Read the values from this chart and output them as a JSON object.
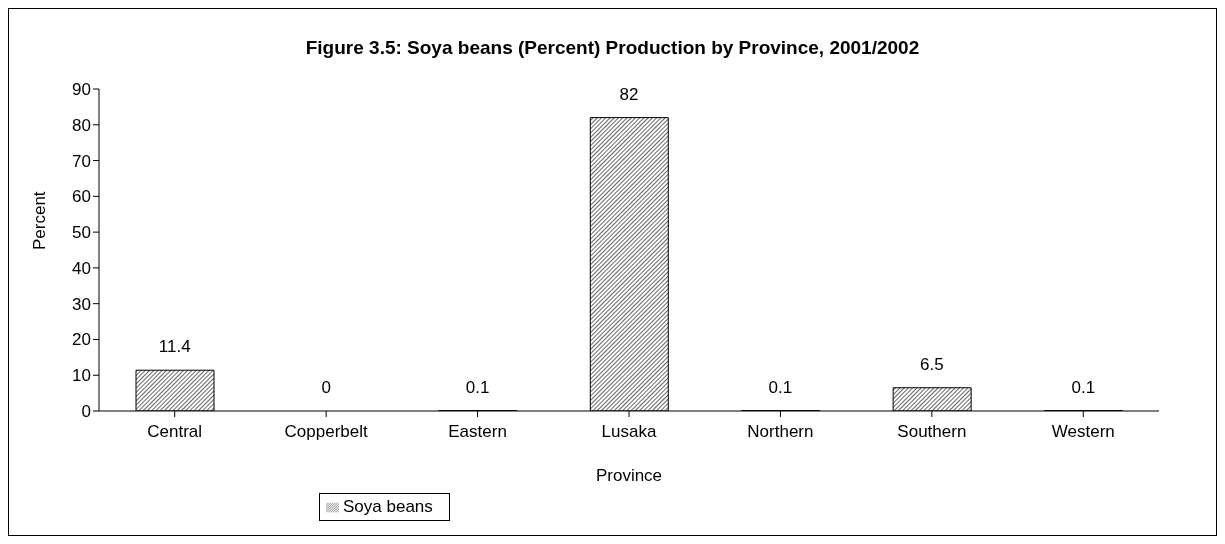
{
  "chart_data": {
    "type": "bar",
    "title": "Figure 3.5: Soya beans (Percent) Production by Province, 2001/2002",
    "xlabel": "Province",
    "ylabel": "Percent",
    "categories": [
      "Central",
      "Copperbelt",
      "Eastern",
      "Lusaka",
      "Northern",
      "Southern",
      "Western"
    ],
    "series": [
      {
        "name": "Soya beans",
        "color": "#000000",
        "values": [
          11.4,
          0,
          0.1,
          82,
          0.1,
          6.5,
          0.1
        ]
      }
    ],
    "ylim": [
      0,
      90
    ],
    "yticks": [
      0,
      10,
      20,
      30,
      40,
      50,
      60,
      70,
      80,
      90
    ],
    "data_labels": true,
    "legend": "bottom",
    "grid": false
  }
}
